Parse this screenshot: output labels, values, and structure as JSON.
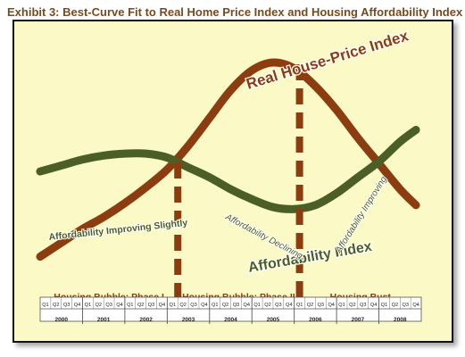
{
  "title": "Exhibit 3: Best-Curve Fit to Real Home Price Index and Housing Affordability Index",
  "colors": {
    "background": "#fbf9c6",
    "price": "#8c3d10",
    "affordability": "#4b5e26",
    "phase": "#8c3d10",
    "title": "#7a4a1c"
  },
  "chart_data": {
    "type": "line",
    "title": "Exhibit 3: Best-Curve Fit to Real Home Price Index and Housing Affordability Index",
    "xlabel": "",
    "ylabel": "",
    "years": [
      "2000",
      "2001",
      "2002",
      "2003",
      "2004",
      "2005",
      "2006",
      "2007",
      "2008"
    ],
    "quarters": [
      "Q1",
      "Q2",
      "Q3",
      "Q4"
    ],
    "series": [
      {
        "name": "Real House-Price Index",
        "x": [
          0,
          2,
          4,
          6,
          8,
          10,
          12,
          14,
          16,
          18,
          20,
          22,
          24,
          26,
          28,
          30,
          32,
          34,
          35.5
        ],
        "values": [
          2,
          9,
          16,
          22,
          29,
          37,
          46,
          58,
          72,
          86,
          96,
          100,
          97,
          88,
          76,
          62,
          49,
          36,
          28
        ]
      },
      {
        "name": "Affordability Index",
        "x": [
          0,
          2,
          4,
          6,
          8,
          10,
          12,
          14,
          16,
          18,
          20,
          22,
          24,
          26,
          28,
          30,
          32,
          34,
          35.5
        ],
        "values": [
          45,
          48,
          51,
          53,
          54,
          54,
          52,
          47,
          42,
          36,
          31,
          27,
          26,
          28,
          34,
          42,
          50,
          60,
          66
        ]
      }
    ],
    "phases": [
      {
        "label": "Housing Bubble: Phase I"
      },
      {
        "label": "Housing Bubble: Phase II"
      },
      {
        "label": "Housing Bust"
      }
    ],
    "annotations": [
      {
        "text": "Affordability Improving Slightly"
      },
      {
        "text": "Affordability Declining"
      },
      {
        "text": "Affordability Improving"
      }
    ],
    "phase_dividers_x": [
      13,
      24.5
    ],
    "grid": false
  }
}
